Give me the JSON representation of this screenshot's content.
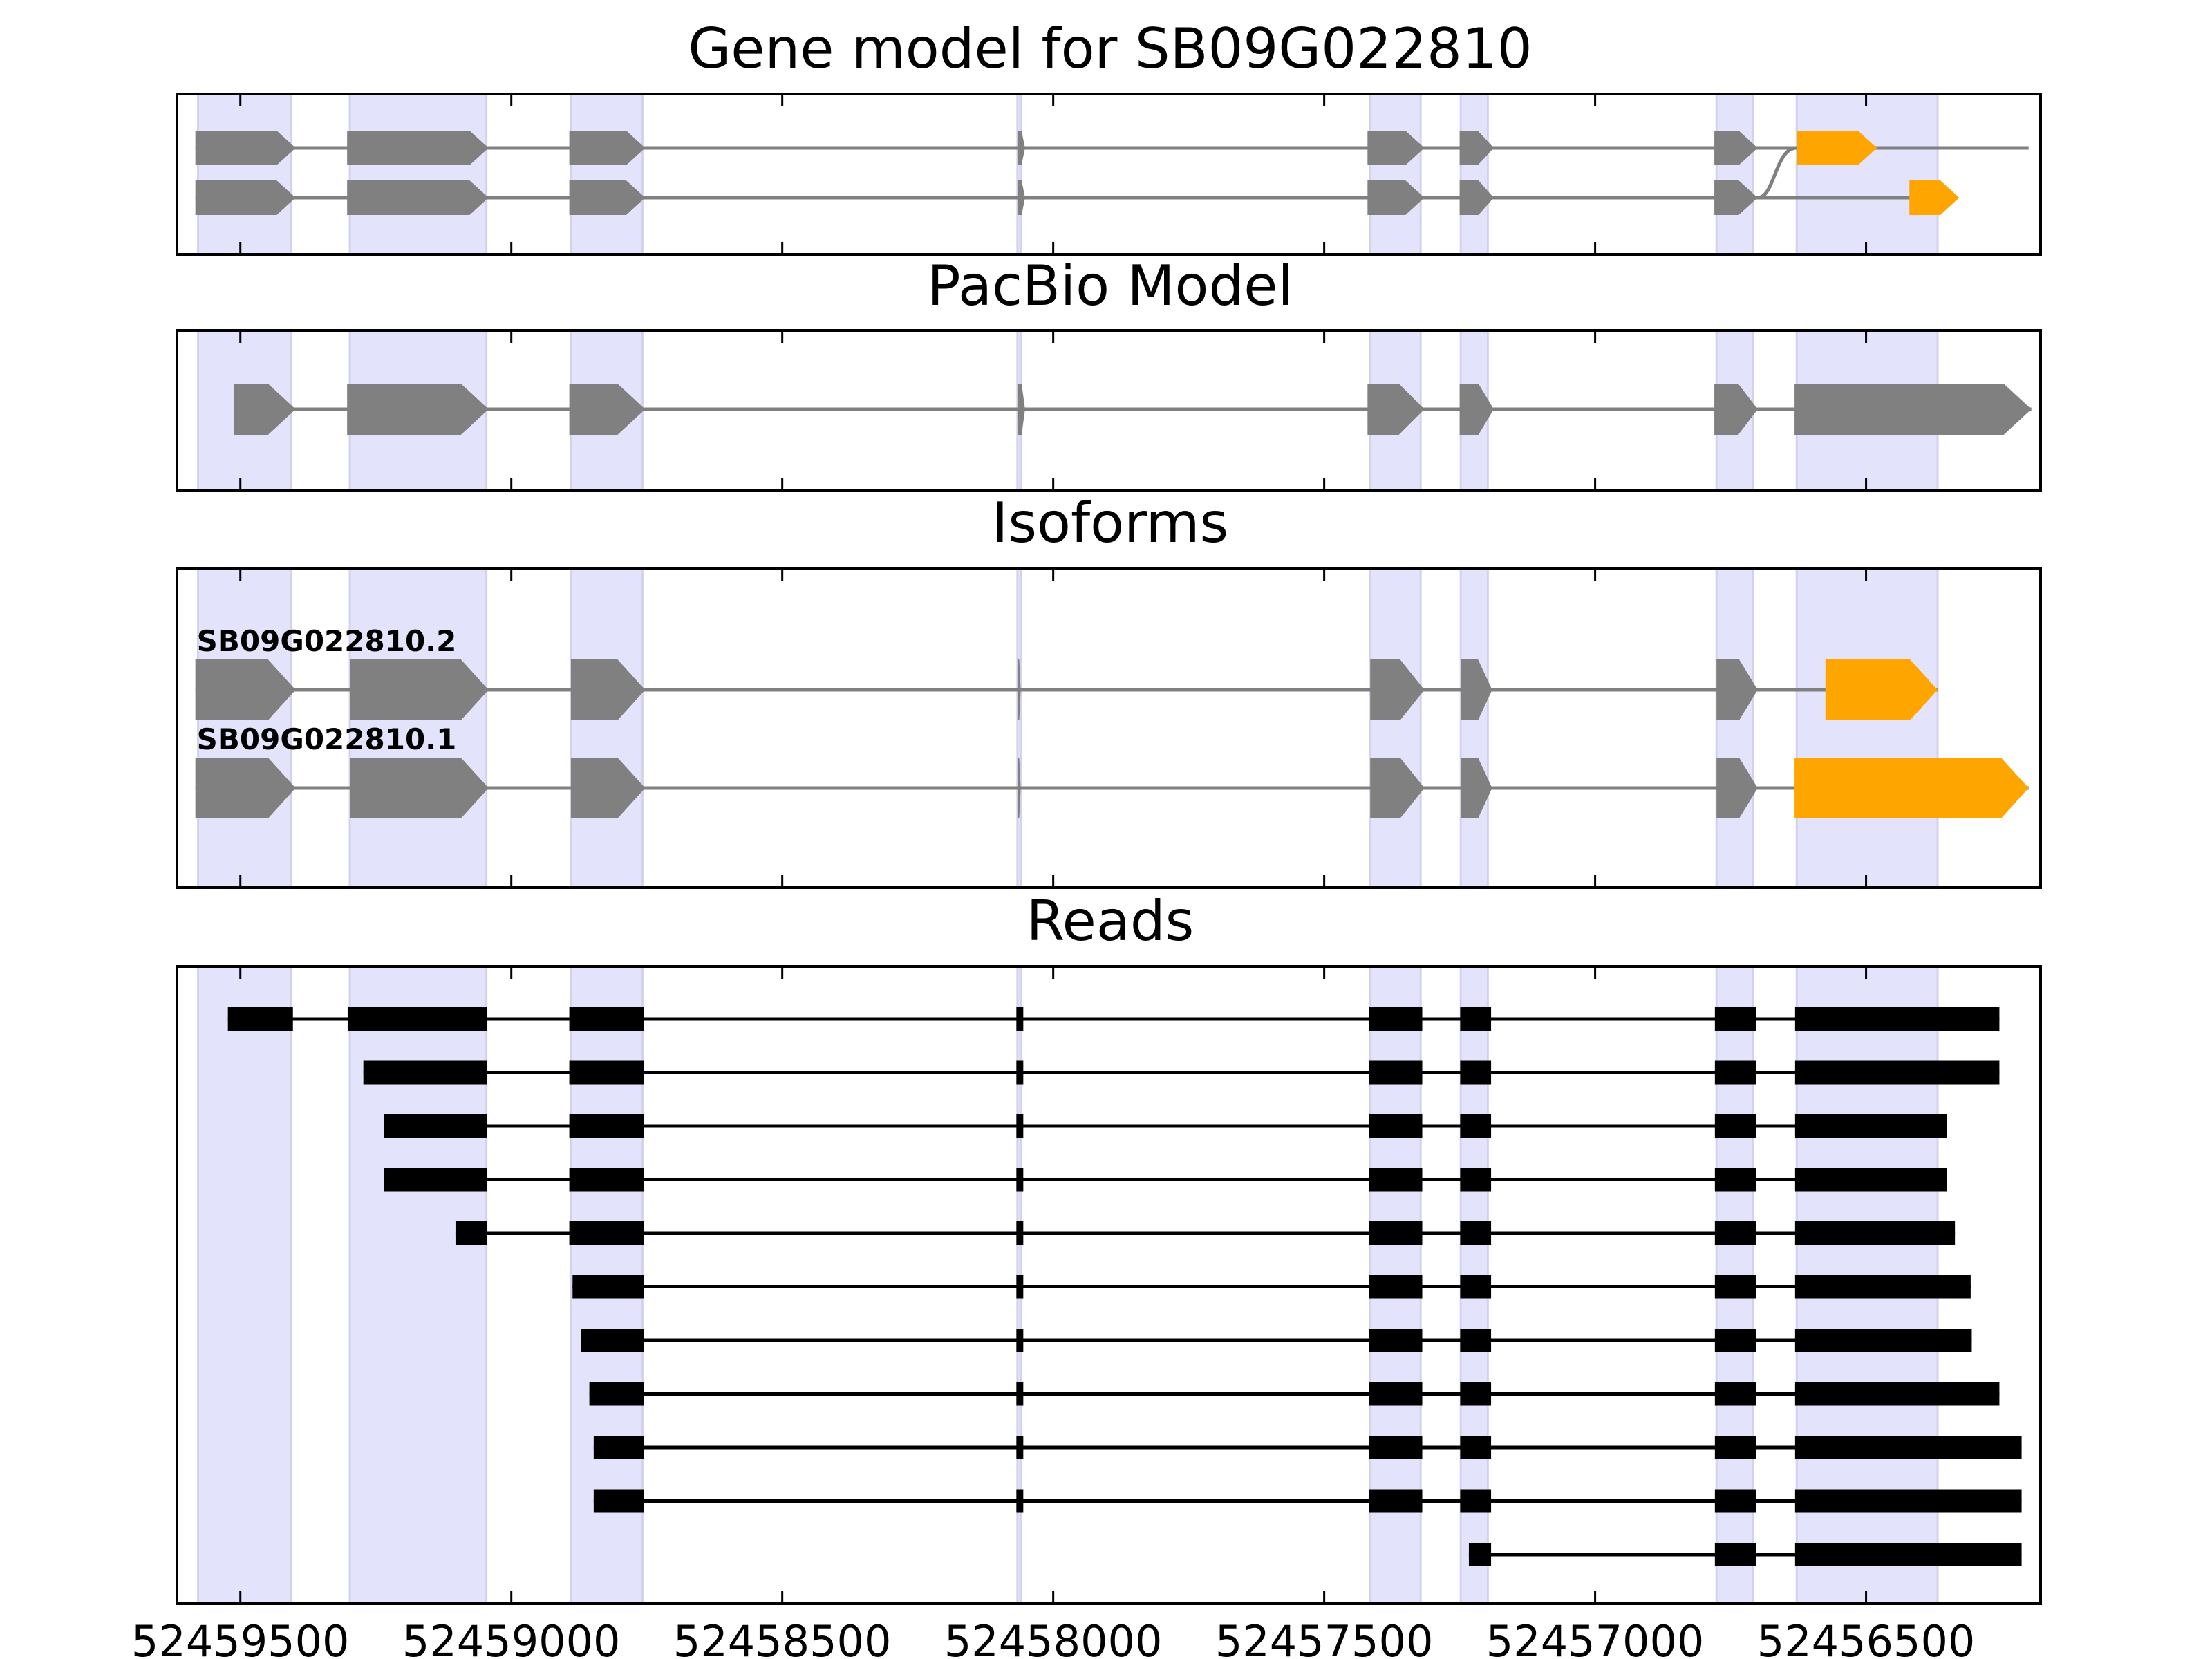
{
  "chart_data": {
    "type": "gene-track",
    "axis": {
      "direction": "reversed",
      "xlim": [
        52459617,
        52456178
      ],
      "ticks": [
        52459500,
        52459000,
        52458500,
        52458000,
        52457500,
        52457000,
        52456500
      ],
      "tick_labels": [
        "52459500",
        "52459000",
        "52458500",
        "52458000",
        "52457500",
        "52457000",
        "52456500"
      ]
    },
    "exon_highlights": [
      [
        52459578,
        52459406
      ],
      [
        52459298,
        52459046
      ],
      [
        52458890,
        52458758
      ],
      [
        52458066,
        52458060
      ],
      [
        52457415,
        52457322
      ],
      [
        52457248,
        52457198
      ],
      [
        52456776,
        52456708
      ],
      [
        52456628,
        52456368
      ]
    ],
    "panels": [
      {
        "key": "gene_model",
        "title": "Gene model for SB09G022810",
        "transcripts": [
          {
            "name": "",
            "start": 52459583,
            "end": 52456368,
            "exons": [
              [
                52459583,
                52459398
              ],
              [
                52459303,
                52459042
              ],
              [
                52458893,
                52458753
              ],
              [
                52458066,
                52458052
              ],
              [
                52457420,
                52457315
              ],
              [
                52457250,
                52457187
              ],
              [
                52456780,
                52456700
              ],
              [
                52456420,
                52456328
              ]
            ],
            "utr_exons": [
              [
                52456420,
                52456328
              ]
            ]
          },
          {
            "name": "",
            "start": 52459583,
            "end": 52456200,
            "exons": [
              [
                52459583,
                52459398
              ],
              [
                52459303,
                52459042
              ],
              [
                52458893,
                52458753
              ],
              [
                52458066,
                52458052
              ],
              [
                52457420,
                52457315
              ],
              [
                52457250,
                52457187
              ],
              [
                52456780,
                52456700
              ],
              [
                52456628,
                52456480
              ]
            ],
            "utr_exons": [
              [
                52456628,
                52456480
              ]
            ]
          }
        ]
      },
      {
        "key": "pacbio",
        "title": "PacBio Model",
        "transcripts": [
          {
            "name": "",
            "start": 52459512,
            "end": 52456195,
            "exons": [
              [
                52459512,
                52459398
              ],
              [
                52459303,
                52459042
              ],
              [
                52458893,
                52458753
              ],
              [
                52458066,
                52458052
              ],
              [
                52457420,
                52457315
              ],
              [
                52457250,
                52457187
              ],
              [
                52456780,
                52456700
              ],
              [
                52456632,
                52456195
              ]
            ],
            "utr_exons": []
          }
        ]
      },
      {
        "key": "isoforms",
        "title": "Isoforms",
        "transcripts": [
          {
            "name": "SB09G022810.2",
            "start": 52459583,
            "end": 52456368,
            "exons": [
              [
                52459583,
                52459398
              ],
              [
                52459298,
                52459042
              ],
              [
                52458890,
                52458753
              ],
              [
                52458066,
                52458060
              ],
              [
                52457415,
                52457315
              ],
              [
                52457248,
                52457190
              ],
              [
                52456776,
                52456700
              ],
              [
                52456575,
                52456368
              ]
            ],
            "utr_exons": [
              [
                52456575,
                52456368
              ]
            ]
          },
          {
            "name": "SB09G022810.1",
            "start": 52459583,
            "end": 52456200,
            "exons": [
              [
                52459583,
                52459398
              ],
              [
                52459298,
                52459042
              ],
              [
                52458890,
                52458753
              ],
              [
                52458066,
                52458060
              ],
              [
                52457415,
                52457315
              ],
              [
                52457248,
                52457190
              ],
              [
                52456776,
                52456700
              ],
              [
                52456632,
                52456200
              ]
            ],
            "utr_exons": [
              [
                52456632,
                52456200
              ]
            ]
          }
        ]
      },
      {
        "key": "reads",
        "title": "Reads",
        "reads": [
          [
            [
              52459523,
              52459403
            ],
            [
              52459302,
              52459045
            ],
            [
              52458893,
              52458755
            ],
            [
              52458068,
              52458057
            ],
            [
              52457417,
              52457319
            ],
            [
              52457249,
              52457192
            ],
            [
              52456779,
              52456703
            ],
            [
              52456631,
              52456254
            ]
          ],
          [
            [
              52459273,
              52459045
            ],
            [
              52458893,
              52458755
            ],
            [
              52458068,
              52458057
            ],
            [
              52457417,
              52457319
            ],
            [
              52457249,
              52457192
            ],
            [
              52456779,
              52456703
            ],
            [
              52456631,
              52456254
            ]
          ],
          [
            [
              52459235,
              52459045
            ],
            [
              52458893,
              52458755
            ],
            [
              52458068,
              52458057
            ],
            [
              52457417,
              52457319
            ],
            [
              52457249,
              52457192
            ],
            [
              52456779,
              52456703
            ],
            [
              52456631,
              52456351
            ]
          ],
          [
            [
              52459235,
              52459045
            ],
            [
              52458893,
              52458755
            ],
            [
              52458068,
              52458057
            ],
            [
              52457417,
              52457319
            ],
            [
              52457249,
              52457192
            ],
            [
              52456779,
              52456703
            ],
            [
              52456631,
              52456351
            ]
          ],
          [
            [
              52459103,
              52459045
            ],
            [
              52458893,
              52458755
            ],
            [
              52458068,
              52458057
            ],
            [
              52457417,
              52457319
            ],
            [
              52457249,
              52457192
            ],
            [
              52456779,
              52456703
            ],
            [
              52456631,
              52456336
            ]
          ],
          [
            [
              52458887,
              52458755
            ],
            [
              52458068,
              52458057
            ],
            [
              52457417,
              52457319
            ],
            [
              52457249,
              52457192
            ],
            [
              52456779,
              52456703
            ],
            [
              52456631,
              52456307
            ]
          ],
          [
            [
              52458872,
              52458755
            ],
            [
              52458068,
              52458057
            ],
            [
              52457417,
              52457319
            ],
            [
              52457249,
              52457192
            ],
            [
              52456779,
              52456703
            ],
            [
              52456631,
              52456305
            ]
          ],
          [
            [
              52458856,
              52458755
            ],
            [
              52458068,
              52458057
            ],
            [
              52457417,
              52457319
            ],
            [
              52457249,
              52457192
            ],
            [
              52456779,
              52456703
            ],
            [
              52456631,
              52456254
            ]
          ],
          [
            [
              52458848,
              52458755
            ],
            [
              52458068,
              52458057
            ],
            [
              52457417,
              52457319
            ],
            [
              52457249,
              52457192
            ],
            [
              52456779,
              52456703
            ],
            [
              52456631,
              52456213
            ]
          ],
          [
            [
              52458848,
              52458755
            ],
            [
              52458068,
              52458057
            ],
            [
              52457417,
              52457319
            ],
            [
              52457249,
              52457192
            ],
            [
              52456779,
              52456703
            ],
            [
              52456631,
              52456213
            ]
          ],
          [
            [
              52457233,
              52457192
            ],
            [
              52456779,
              52456703
            ],
            [
              52456631,
              52456213
            ]
          ]
        ]
      }
    ],
    "colors": {
      "cds": "#808080",
      "utr": "#ffa500",
      "read": "#000000",
      "highlight": "#e3e3fb",
      "highlight_edge": "#d2d2ee",
      "intron_model": "#808080",
      "intron_read": "#000000"
    }
  }
}
